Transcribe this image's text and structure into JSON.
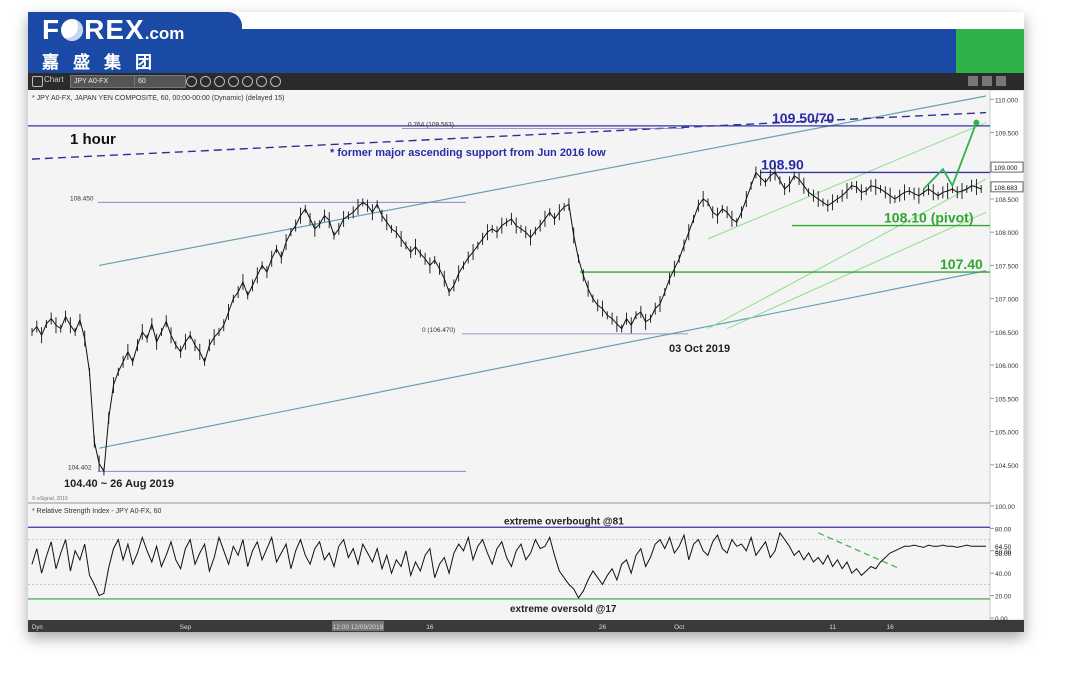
{
  "brand": {
    "logo_left": "F",
    "logo_right": "REX",
    "logo_suffix": ".com",
    "chinese_name": "嘉盛集团"
  },
  "toolbar": {
    "chart_label": "Chart",
    "symbol": "JPY A0-FX",
    "interval": "60"
  },
  "chart_data": [
    {
      "type": "line",
      "subtitle": "* JPY A0-FX, JAPAN YEN COMPOSITE, 60, 00:00-00:00 (Dynamic) (delayed 15)",
      "timeframe_label": "1 hour",
      "ylim": [
        104.0,
        110.05
      ],
      "y_ticks": [
        "110.000",
        "109.500",
        "109.000",
        "108.500",
        "108.000",
        "107.500",
        "107.000",
        "106.500",
        "106.000",
        "105.500",
        "105.000",
        "104.500"
      ],
      "y_tick_values": [
        110.0,
        109.5,
        109.0,
        108.5,
        108.0,
        107.5,
        107.0,
        106.5,
        106.0,
        105.5,
        105.0,
        104.5
      ],
      "price_tags": [
        "109.000",
        "108.683"
      ],
      "x_tick_labels": [
        "Sep",
        "12:00 12/09/2019",
        "16",
        "26",
        "Oct",
        "11",
        "16"
      ],
      "x_tick_index": [
        32,
        68,
        83,
        119,
        135,
        167,
        179
      ],
      "x_count": 200,
      "price_series": [
        106.5,
        106.58,
        106.45,
        106.62,
        106.7,
        106.6,
        106.55,
        106.73,
        106.6,
        106.5,
        106.68,
        106.4,
        105.9,
        104.85,
        104.52,
        104.4,
        105.2,
        105.7,
        105.9,
        106.05,
        106.2,
        106.05,
        106.3,
        106.5,
        106.4,
        106.62,
        106.35,
        106.5,
        106.66,
        106.45,
        106.3,
        106.2,
        106.35,
        106.45,
        106.3,
        106.2,
        106.05,
        106.3,
        106.42,
        106.5,
        106.6,
        106.8,
        107.0,
        107.1,
        107.25,
        107.05,
        107.2,
        107.35,
        107.5,
        107.4,
        107.6,
        107.75,
        107.62,
        107.85,
        108.0,
        108.1,
        108.25,
        108.35,
        108.2,
        108.05,
        108.12,
        108.25,
        108.18,
        107.95,
        108.05,
        108.2,
        108.25,
        108.3,
        108.38,
        108.45,
        108.4,
        108.3,
        108.42,
        108.25,
        108.15,
        108.05,
        108.0,
        107.9,
        107.8,
        107.7,
        107.78,
        107.68,
        107.6,
        107.5,
        107.58,
        107.45,
        107.3,
        107.1,
        107.2,
        107.38,
        107.5,
        107.62,
        107.7,
        107.8,
        107.9,
        108.0,
        108.05,
        108.0,
        108.1,
        108.15,
        108.2,
        108.1,
        108.05,
        108.0,
        107.92,
        108.02,
        108.1,
        108.2,
        108.3,
        108.2,
        108.3,
        108.38,
        108.42,
        107.95,
        107.6,
        107.35,
        107.15,
        107.0,
        106.9,
        106.85,
        106.75,
        106.7,
        106.62,
        106.55,
        106.7,
        106.6,
        106.75,
        106.8,
        106.65,
        106.7,
        106.85,
        106.92,
        107.1,
        107.3,
        107.45,
        107.6,
        107.8,
        108.0,
        108.2,
        108.4,
        108.5,
        108.45,
        108.3,
        108.25,
        108.35,
        108.3,
        108.2,
        108.15,
        108.3,
        108.5,
        108.7,
        108.9,
        108.82,
        108.75,
        108.85,
        108.9,
        108.78,
        108.65,
        108.72,
        108.85,
        108.8,
        108.7,
        108.6,
        108.55,
        108.5,
        108.45,
        108.4,
        108.45,
        108.5,
        108.55,
        108.62,
        108.7,
        108.68,
        108.6,
        108.62,
        108.7,
        108.68,
        108.65,
        108.6,
        108.55,
        108.5,
        108.55,
        108.6,
        108.62,
        108.58,
        108.55,
        108.6,
        108.65,
        108.6,
        108.55,
        108.6,
        108.62,
        108.65,
        108.6,
        108.62,
        108.65,
        108.7,
        108.68,
        108.65
      ],
      "projection": [
        [
          186,
          108.65
        ],
        [
          190,
          108.95
        ],
        [
          192,
          108.7
        ],
        [
          197,
          109.65
        ]
      ],
      "levels": [
        {
          "label": "109.50/70",
          "value": 109.6
        },
        {
          "label": "108.90",
          "value": 108.9
        },
        {
          "label": "108.10 (pivot)",
          "value": 108.1
        },
        {
          "label": "107.40",
          "value": 107.4
        }
      ],
      "fib": [
        {
          "label": "0.764 (109.563)",
          "value": 109.563
        },
        {
          "label": "108.450",
          "value": 108.45
        },
        {
          "label": "0 (106.470)",
          "value": 106.47
        },
        {
          "label": "104.402",
          "value": 104.402
        }
      ],
      "annotations": [
        "* former major ascending support from Jun 2016 low",
        "03 Oct 2019",
        "104.40 ~ 26 Aug 2019"
      ],
      "watermark": "© eSignal, 2019"
    },
    {
      "type": "line",
      "subtitle": "* Relative Strength Index - JPY A0-FX, 60",
      "ylim": [
        0,
        100
      ],
      "y_ticks": [
        "100.00",
        "80.00",
        "60.00",
        "40.00",
        "20.00",
        "0.00"
      ],
      "y_tick_values": [
        100,
        80,
        60,
        40,
        20,
        0
      ],
      "value_tags": [
        "64.50",
        "58.00"
      ],
      "overbought": {
        "label": "extreme overbought @81",
        "value": 81
      },
      "oversold": {
        "label": "extreme oversold @17",
        "value": 17
      },
      "series": [
        {
          "values": [
            48,
            62,
            40,
            55,
            68,
            44,
            58,
            70,
            42,
            60,
            52,
            66,
            38,
            30,
            20,
            22,
            45,
            62,
            70,
            52,
            66,
            48,
            58,
            72,
            60,
            50,
            64,
            46,
            56,
            68,
            52,
            44,
            62,
            70,
            48,
            58,
            66,
            42,
            54,
            72,
            60,
            48,
            64,
            56,
            70,
            46,
            60,
            68,
            52,
            62,
            72,
            50,
            58,
            66,
            44,
            60,
            70,
            56,
            48,
            62,
            68,
            52,
            58,
            46,
            64,
            70,
            54,
            62,
            48,
            66,
            58,
            50,
            62,
            44,
            56,
            40,
            52,
            46,
            60,
            38,
            50,
            42,
            56,
            62,
            36,
            48,
            54,
            40,
            58,
            66,
            60,
            72,
            52,
            64,
            70,
            58,
            48,
            62,
            68,
            54,
            46,
            60,
            66,
            52,
            58,
            70,
            62,
            64,
            72,
            56,
            42,
            36,
            30,
            26,
            18,
            24,
            34,
            42,
            36,
            30,
            38,
            44,
            34,
            48,
            52,
            40,
            56,
            62,
            46,
            54,
            66,
            70,
            62,
            72,
            58,
            64,
            74,
            52,
            66,
            70,
            60,
            56,
            68,
            74,
            62,
            58,
            70,
            64,
            66,
            60,
            72,
            56,
            62,
            68,
            54,
            60,
            76,
            70,
            64,
            56,
            60,
            52,
            58,
            50,
            54,
            48,
            56,
            46,
            52,
            44,
            50,
            40,
            44,
            38,
            42,
            46,
            44,
            50,
            54,
            58,
            60,
            62,
            64,
            64,
            65,
            64,
            63,
            65,
            64,
            64,
            65,
            64,
            64,
            63,
            64,
            65,
            64,
            64,
            64,
            64
          ]
        }
      ],
      "watermark": "Dyn"
    }
  ]
}
